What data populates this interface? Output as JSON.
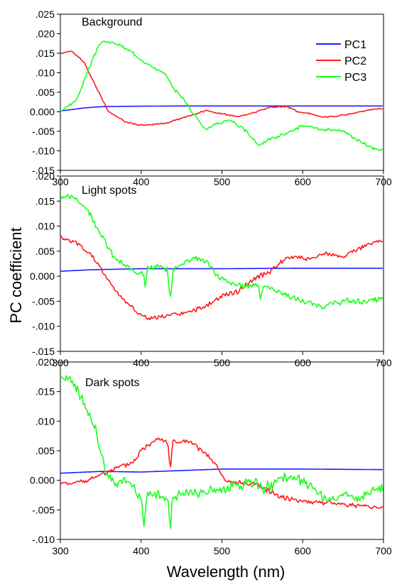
{
  "figure": {
    "ylabel": "PC coefficient",
    "xlabel": "Wavelength (nm)"
  },
  "legend": [
    {
      "name": "PC1",
      "color": "#1f1fff"
    },
    {
      "name": "PC2",
      "color": "#ff1a1a"
    },
    {
      "name": "PC3",
      "color": "#1aff1a"
    }
  ],
  "chart_data": [
    {
      "type": "line",
      "title": "Background",
      "xlim": [
        300,
        700
      ],
      "ylim": [
        -0.015,
        0.025
      ],
      "xticks": [
        "300",
        "400",
        "500",
        "600",
        "700"
      ],
      "yticks": [
        ".025",
        ".020",
        ".015",
        ".010",
        ".005",
        "0.000",
        "-.005",
        "-.010",
        "-.015"
      ],
      "series": [
        {
          "name": "PC1",
          "color": "#1f1fff",
          "noise": 0,
          "seed": 1,
          "points": [
            [
              300,
              0.0002
            ],
            [
              330,
              0.001
            ],
            [
              350,
              0.0013
            ],
            [
              380,
              0.0014
            ],
            [
              450,
              0.0015
            ],
            [
              500,
              0.0015
            ],
            [
              600,
              0.0015
            ],
            [
              700,
              0.0015
            ]
          ]
        },
        {
          "name": "PC2",
          "color": "#ff1a1a",
          "noise": 0.0003,
          "seed": 2,
          "points": [
            [
              300,
              0.015
            ],
            [
              315,
              0.0155
            ],
            [
              330,
              0.0125
            ],
            [
              345,
              0.006
            ],
            [
              360,
              0.0
            ],
            [
              380,
              -0.0025
            ],
            [
              400,
              -0.0035
            ],
            [
              430,
              -0.003
            ],
            [
              460,
              -0.001
            ],
            [
              480,
              0.0003
            ],
            [
              500,
              -0.0005
            ],
            [
              520,
              -0.0013
            ],
            [
              540,
              -0.0002
            ],
            [
              560,
              0.0012
            ],
            [
              580,
              0.0013
            ],
            [
              595,
              0.0
            ],
            [
              610,
              -0.0005
            ],
            [
              625,
              -0.0013
            ],
            [
              640,
              -0.0012
            ],
            [
              660,
              -0.0005
            ],
            [
              690,
              0.0008
            ],
            [
              700,
              0.0007
            ]
          ]
        },
        {
          "name": "PC3",
          "color": "#1aff1a",
          "noise": 0.0006,
          "seed": 3,
          "points": [
            [
              300,
              0.0
            ],
            [
              320,
              0.003
            ],
            [
              335,
              0.011
            ],
            [
              350,
              0.018
            ],
            [
              370,
              0.0175
            ],
            [
              390,
              0.015
            ],
            [
              410,
              0.012
            ],
            [
              430,
              0.0095
            ],
            [
              440,
              0.006
            ],
            [
              450,
              0.004
            ],
            [
              465,
              -0.0005
            ],
            [
              480,
              -0.0045
            ],
            [
              495,
              -0.003
            ],
            [
              510,
              -0.002
            ],
            [
              530,
              -0.005
            ],
            [
              545,
              -0.0085
            ],
            [
              560,
              -0.007
            ],
            [
              580,
              -0.0055
            ],
            [
              600,
              -0.0035
            ],
            [
              620,
              -0.0045
            ],
            [
              650,
              -0.005
            ],
            [
              670,
              -0.0075
            ],
            [
              690,
              -0.0097
            ],
            [
              700,
              -0.0097
            ]
          ]
        }
      ]
    },
    {
      "type": "line",
      "title": "Light spots",
      "xlim": [
        300,
        700
      ],
      "ylim": [
        -0.015,
        0.02
      ],
      "xticks": [
        "300",
        "400",
        "500",
        "600",
        "700"
      ],
      "yticks": [
        ".020",
        ".015",
        ".010",
        ".005",
        "0.000",
        "-.005",
        "-.010",
        "-.015"
      ],
      "series": [
        {
          "name": "PC1",
          "color": "#1f1fff",
          "noise": 0,
          "seed": 4,
          "points": [
            [
              300,
              0.001
            ],
            [
              340,
              0.0013
            ],
            [
              400,
              0.0015
            ],
            [
              500,
              0.0015
            ],
            [
              600,
              0.0016
            ],
            [
              700,
              0.0016
            ]
          ]
        },
        {
          "name": "PC2",
          "color": "#ff1a1a",
          "noise": 0.0007,
          "seed": 5,
          "points": [
            [
              300,
              0.0078
            ],
            [
              320,
              0.0065
            ],
            [
              340,
              0.004
            ],
            [
              360,
              -0.001
            ],
            [
              380,
              -0.005
            ],
            [
              400,
              -0.0078
            ],
            [
              410,
              -0.0085
            ],
            [
              430,
              -0.008
            ],
            [
              460,
              -0.0072
            ],
            [
              480,
              -0.006
            ],
            [
              500,
              -0.004
            ],
            [
              520,
              -0.003
            ],
            [
              540,
              -0.0005
            ],
            [
              560,
              0.001
            ],
            [
              575,
              0.003
            ],
            [
              590,
              0.004
            ],
            [
              610,
              0.0035
            ],
            [
              630,
              0.0045
            ],
            [
              650,
              0.004
            ],
            [
              670,
              0.0055
            ],
            [
              690,
              0.007
            ],
            [
              700,
              0.0068
            ]
          ]
        },
        {
          "name": "PC3",
          "color": "#1aff1a",
          "noise": 0.0009,
          "seed": 6,
          "points": [
            [
              300,
              0.016
            ],
            [
              320,
              0.0155
            ],
            [
              335,
              0.013
            ],
            [
              350,
              0.0085
            ],
            [
              365,
              0.004
            ],
            [
              380,
              0.002
            ],
            [
              395,
              0.0008
            ],
            [
              403,
              0.001
            ],
            [
              405,
              -0.002
            ],
            [
              408,
              0.0015
            ],
            [
              420,
              0.002
            ],
            [
              433,
              0.001
            ],
            [
              436,
              -0.0055
            ],
            [
              439,
              0.001
            ],
            [
              450,
              0.0025
            ],
            [
              465,
              0.0038
            ],
            [
              480,
              0.003
            ],
            [
              495,
              0.0
            ],
            [
              510,
              -0.0015
            ],
            [
              530,
              -0.002
            ],
            [
              545,
              -0.0015
            ],
            [
              548,
              -0.0045
            ],
            [
              551,
              -0.002
            ],
            [
              570,
              -0.003
            ],
            [
              590,
              -0.0045
            ],
            [
              610,
              -0.0055
            ],
            [
              625,
              -0.006
            ],
            [
              650,
              -0.005
            ],
            [
              680,
              -0.005
            ],
            [
              700,
              -0.0045
            ]
          ]
        }
      ]
    },
    {
      "type": "line",
      "title": "Dark spots",
      "xlim": [
        300,
        700
      ],
      "ylim": [
        -0.01,
        0.02
      ],
      "xticks": [
        "300",
        "400",
        "500",
        "600",
        "700"
      ],
      "yticks": [
        ".020",
        ".015",
        ".010",
        ".005",
        "0.000",
        "-.005",
        "-.010"
      ],
      "series": [
        {
          "name": "PC1",
          "color": "#1f1fff",
          "noise": 0,
          "seed": 7,
          "points": [
            [
              300,
              0.0012
            ],
            [
              350,
              0.0015
            ],
            [
              400,
              0.0014
            ],
            [
              500,
              0.0019
            ],
            [
              600,
              0.0019
            ],
            [
              700,
              0.0018
            ]
          ]
        },
        {
          "name": "PC2",
          "color": "#ff1a1a",
          "noise": 0.0006,
          "seed": 8,
          "points": [
            [
              300,
              -0.0005
            ],
            [
              330,
              -0.0003
            ],
            [
              350,
              0.001
            ],
            [
              370,
              0.002
            ],
            [
              390,
              0.003
            ],
            [
              400,
              0.005
            ],
            [
              420,
              0.0072
            ],
            [
              433,
              0.0065
            ],
            [
              436,
              0.0015
            ],
            [
              439,
              0.0065
            ],
            [
              460,
              0.0065
            ],
            [
              480,
              0.0045
            ],
            [
              495,
              0.002
            ],
            [
              505,
              -0.0003
            ],
            [
              520,
              -0.0005
            ],
            [
              540,
              -0.0005
            ],
            [
              560,
              -0.002
            ],
            [
              580,
              -0.003
            ],
            [
              600,
              -0.0035
            ],
            [
              620,
              -0.0037
            ],
            [
              650,
              -0.004
            ],
            [
              680,
              -0.0045
            ],
            [
              700,
              -0.0045
            ]
          ]
        },
        {
          "name": "PC3",
          "color": "#1aff1a",
          "noise": 0.0014,
          "seed": 9,
          "points": [
            [
              300,
              0.0175
            ],
            [
              315,
              0.0165
            ],
            [
              330,
              0.013
            ],
            [
              345,
              0.008
            ],
            [
              355,
              0.002
            ],
            [
              370,
              -0.001
            ],
            [
              380,
              0.0
            ],
            [
              390,
              -0.001
            ],
            [
              400,
              -0.003
            ],
            [
              404,
              -0.0075
            ],
            [
              408,
              -0.002
            ],
            [
              420,
              -0.0025
            ],
            [
              433,
              -0.003
            ],
            [
              436,
              -0.0085
            ],
            [
              439,
              -0.003
            ],
            [
              460,
              -0.002
            ],
            [
              480,
              -0.002
            ],
            [
              500,
              -0.0015
            ],
            [
              520,
              -0.001
            ],
            [
              540,
              -0.0005
            ],
            [
              550,
              -0.0015
            ],
            [
              570,
              0.0
            ],
            [
              590,
              0.0005
            ],
            [
              610,
              -0.001
            ],
            [
              630,
              -0.0035
            ],
            [
              650,
              -0.0025
            ],
            [
              670,
              -0.003
            ],
            [
              690,
              -0.0015
            ],
            [
              700,
              -0.0015
            ]
          ]
        }
      ]
    }
  ]
}
